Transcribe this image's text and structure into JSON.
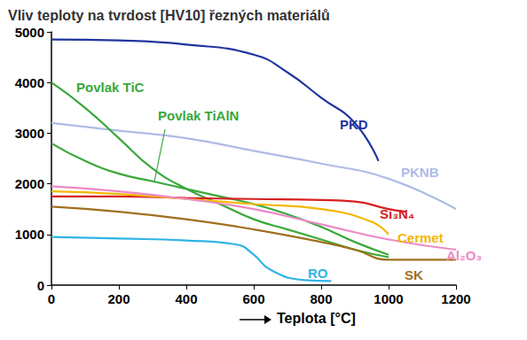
{
  "chart_data": {
    "type": "line",
    "title": "Vliv teploty na tvrdost [HV10] řezných materiálů",
    "x_label": "Teplota [°C]",
    "xlim": [
      0,
      1200
    ],
    "xticks": [
      0,
      200,
      400,
      600,
      800,
      1000,
      1200
    ],
    "ylim": [
      0,
      5000
    ],
    "yticks": [
      0,
      1000,
      2000,
      3000,
      4000,
      5000
    ],
    "grid": false,
    "series": [
      {
        "name": "PKD",
        "color": "#1f35a0",
        "x": [
          0,
          200,
          400,
          600,
          700,
          800,
          900,
          970
        ],
        "values": [
          4850,
          4830,
          4750,
          4550,
          4200,
          3700,
          3200,
          2450
        ]
      },
      {
        "name": "PKNB",
        "color": "#aebce6",
        "x": [
          0,
          200,
          400,
          600,
          800,
          1000,
          1200
        ],
        "values": [
          3200,
          3050,
          2900,
          2650,
          2400,
          2100,
          1500
        ]
      },
      {
        "name": "Povlak TiC",
        "color": "#3aa83a",
        "x": [
          0,
          100,
          200,
          300,
          400,
          500,
          600,
          700,
          800,
          900,
          1000
        ],
        "values": [
          4000,
          3500,
          2900,
          2300,
          1900,
          1600,
          1300,
          1100,
          900,
          700,
          550
        ]
      },
      {
        "name": "Povlak TiAlN",
        "color": "#3aa83a",
        "x": [
          0,
          100,
          200,
          300,
          400,
          500,
          600,
          700,
          800,
          900,
          1000
        ],
        "values": [
          2800,
          2450,
          2200,
          2050,
          1900,
          1750,
          1600,
          1400,
          1150,
          850,
          600
        ]
      },
      {
        "name": "Si₃N₄",
        "color": "#d82020",
        "x": [
          0,
          200,
          400,
          600,
          800,
          900,
          1000,
          1050
        ],
        "values": [
          1750,
          1750,
          1720,
          1700,
          1680,
          1650,
          1500,
          1450
        ]
      },
      {
        "name": "Cermet",
        "color": "#f2b800",
        "x": [
          0,
          200,
          400,
          600,
          800,
          950,
          1000
        ],
        "values": [
          1850,
          1800,
          1700,
          1600,
          1500,
          1250,
          1000
        ]
      },
      {
        "name": "Al₂O₃",
        "color": "#ec8ac6",
        "x": [
          0,
          200,
          400,
          600,
          800,
          1000,
          1200
        ],
        "values": [
          1950,
          1850,
          1700,
          1500,
          1200,
          900,
          700
        ]
      },
      {
        "name": "RO",
        "color": "#30b4e4",
        "x": [
          0,
          200,
          400,
          550,
          600,
          650,
          750,
          830
        ],
        "values": [
          950,
          920,
          880,
          800,
          600,
          300,
          100,
          80
        ]
      },
      {
        "name": "SK",
        "color": "#a0701e",
        "x": [
          0,
          200,
          400,
          600,
          800,
          900,
          1000,
          1200
        ],
        "values": [
          1550,
          1450,
          1300,
          1100,
          850,
          700,
          500,
          500
        ]
      }
    ]
  }
}
